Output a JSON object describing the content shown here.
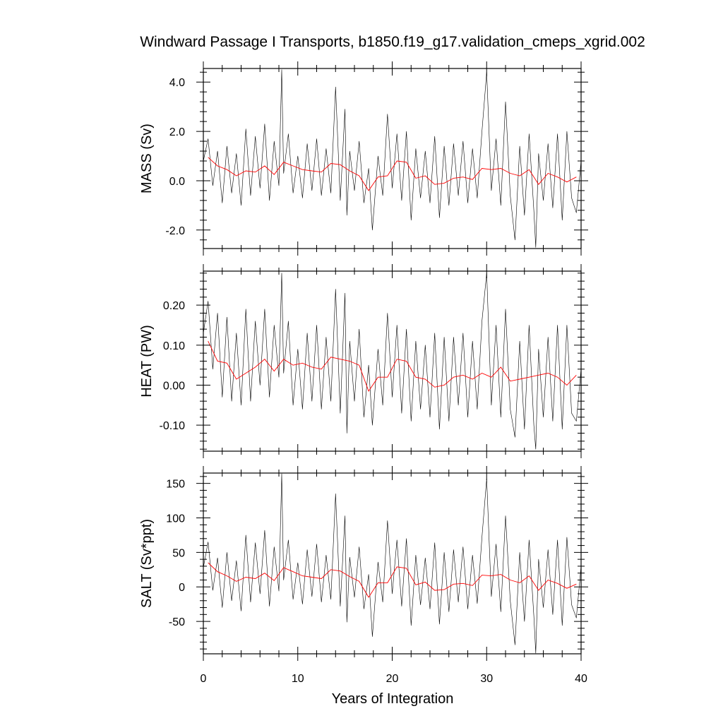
{
  "chart_data": {
    "type": "line",
    "title": "Windward Passage I Transports, b1850.f19_g17.validation_cmeps_xgrid.002",
    "xlabel": "Years of Integration",
    "xlim": [
      0,
      40
    ],
    "xticks": [
      0,
      10,
      20,
      30,
      40
    ],
    "xtick_labels": [
      "0",
      "10",
      "20",
      "30",
      "40"
    ],
    "panels": [
      {
        "id": "mass",
        "ylabel": "MASS (Sv)",
        "ylim": [
          -2.75,
          4.55
        ],
        "yticks": [
          -2.0,
          0.0,
          2.0,
          4.0
        ],
        "ytick_labels": [
          "-2.0",
          "0.0",
          "2.0",
          "4.0"
        ],
        "series": [
          {
            "kind": "monthly",
            "color": "#000000",
            "x": [
              0.0,
              0.5,
              1.0,
              1.5,
              2.0,
              2.5,
              3.0,
              3.5,
              4.0,
              4.5,
              5.0,
              5.5,
              6.0,
              6.5,
              7.0,
              7.5,
              8.0,
              8.3,
              8.5,
              9.0,
              9.5,
              10.0,
              10.5,
              11.0,
              11.5,
              12.0,
              12.5,
              13.0,
              13.5,
              14.0,
              14.5,
              15.0,
              15.2,
              15.5,
              16.0,
              16.5,
              17.0,
              17.5,
              17.9,
              18.5,
              19.0,
              19.5,
              20.0,
              20.5,
              21.0,
              21.5,
              22.0,
              22.5,
              23.0,
              23.5,
              24.0,
              24.5,
              25.0,
              25.5,
              26.0,
              26.5,
              27.0,
              27.5,
              28.0,
              28.5,
              29.0,
              29.5,
              30.0,
              30.5,
              31.0,
              31.5,
              32.0,
              32.5,
              33.0,
              33.5,
              34.0,
              34.5,
              35.0,
              35.2,
              35.5,
              36.0,
              36.5,
              37.0,
              37.5,
              38.0,
              38.5,
              39.0,
              39.5,
              40.0
            ],
            "y": [
              0.8,
              1.7,
              -0.2,
              1.2,
              -0.9,
              1.4,
              -0.5,
              1.1,
              -1.0,
              2.1,
              -0.6,
              1.8,
              -0.3,
              2.3,
              -0.8,
              1.6,
              -0.2,
              4.5,
              0.3,
              1.9,
              -0.5,
              1.0,
              -0.7,
              1.5,
              -0.4,
              1.7,
              -0.6,
              1.3,
              -0.5,
              3.8,
              -0.8,
              2.9,
              -1.4,
              1.2,
              -0.4,
              1.6,
              -0.9,
              0.5,
              -2.0,
              1.0,
              -0.6,
              2.7,
              -0.3,
              1.9,
              -0.8,
              2.0,
              -1.6,
              1.3,
              -0.7,
              1.2,
              -0.9,
              1.8,
              -1.5,
              1.4,
              -1.0,
              1.5,
              -0.6,
              1.6,
              -0.9,
              1.3,
              -0.7,
              2.0,
              4.4,
              -0.4,
              1.7,
              -1.0,
              3.2,
              -0.6,
              -2.4,
              1.4,
              -1.4,
              1.9,
              -1.2,
              -2.7,
              1.1,
              -0.8,
              1.5,
              -1.1,
              1.9,
              -1.6,
              2.0,
              -0.7,
              -1.3,
              0.8
            ]
          },
          {
            "kind": "annual",
            "color": "#ff0000",
            "x": [
              0.5,
              1.5,
              2.5,
              3.5,
              4.5,
              5.5,
              6.5,
              7.5,
              8.5,
              9.5,
              10.5,
              11.5,
              12.5,
              13.5,
              14.5,
              15.5,
              16.5,
              17.5,
              18.5,
              19.5,
              20.5,
              21.5,
              22.5,
              23.5,
              24.5,
              25.5,
              26.5,
              27.5,
              28.5,
              29.5,
              30.5,
              31.5,
              32.5,
              33.5,
              34.5,
              35.5,
              36.5,
              37.5,
              38.5,
              39.5
            ],
            "y": [
              0.95,
              0.6,
              0.45,
              0.2,
              0.4,
              0.35,
              0.6,
              0.25,
              0.75,
              0.6,
              0.45,
              0.4,
              0.35,
              0.7,
              0.65,
              0.4,
              0.2,
              -0.4,
              0.15,
              0.2,
              0.8,
              0.75,
              0.1,
              0.2,
              -0.15,
              -0.1,
              0.1,
              0.15,
              0.05,
              0.5,
              0.45,
              0.5,
              0.3,
              0.2,
              0.45,
              -0.15,
              0.3,
              0.15,
              -0.05,
              0.15
            ]
          }
        ]
      },
      {
        "id": "heat",
        "ylabel": "HEAT (PW)",
        "ylim": [
          -0.165,
          0.285
        ],
        "yticks": [
          -0.1,
          0.0,
          0.1,
          0.2
        ],
        "ytick_labels": [
          "-0.10",
          "0.00",
          "0.10",
          "0.20"
        ],
        "series": [
          {
            "kind": "monthly",
            "color": "#000000",
            "x": [
              0.0,
              0.5,
              1.0,
              1.5,
              2.0,
              2.5,
              3.0,
              3.5,
              4.0,
              4.5,
              5.0,
              5.5,
              6.0,
              6.5,
              7.0,
              7.5,
              8.0,
              8.3,
              8.5,
              9.0,
              9.5,
              10.0,
              10.5,
              11.0,
              11.5,
              12.0,
              12.5,
              13.0,
              13.5,
              14.0,
              14.5,
              15.0,
              15.2,
              15.5,
              16.0,
              16.5,
              17.0,
              17.5,
              17.9,
              18.5,
              19.0,
              19.5,
              20.0,
              20.5,
              21.0,
              21.5,
              22.0,
              22.5,
              23.0,
              23.5,
              24.0,
              24.5,
              25.0,
              25.5,
              26.0,
              26.5,
              27.0,
              27.5,
              28.0,
              28.5,
              29.0,
              29.5,
              30.0,
              30.5,
              31.0,
              31.5,
              32.0,
              32.5,
              33.0,
              33.5,
              34.0,
              34.5,
              35.0,
              35.2,
              35.5,
              36.0,
              36.5,
              37.0,
              37.5,
              38.0,
              38.5,
              39.0,
              39.5,
              40.0
            ],
            "y": [
              0.13,
              0.21,
              0.04,
              0.18,
              -0.03,
              0.17,
              -0.04,
              0.13,
              -0.05,
              0.19,
              -0.04,
              0.16,
              0.0,
              0.19,
              -0.03,
              0.15,
              0.02,
              0.28,
              0.03,
              0.16,
              -0.05,
              0.09,
              -0.06,
              0.13,
              -0.04,
              0.15,
              -0.06,
              0.12,
              -0.04,
              0.24,
              -0.07,
              0.23,
              -0.12,
              0.11,
              -0.04,
              0.14,
              -0.08,
              0.05,
              -0.1,
              0.09,
              -0.05,
              0.18,
              -0.03,
              0.15,
              -0.07,
              0.14,
              -0.09,
              0.11,
              -0.06,
              0.1,
              -0.08,
              0.13,
              -0.11,
              0.12,
              -0.09,
              0.12,
              -0.05,
              0.13,
              -0.08,
              0.11,
              -0.06,
              0.16,
              0.28,
              -0.05,
              0.15,
              -0.08,
              0.19,
              -0.06,
              -0.13,
              0.11,
              -0.11,
              0.15,
              -0.1,
              -0.16,
              0.09,
              -0.08,
              0.12,
              -0.09,
              0.15,
              -0.11,
              0.15,
              -0.07,
              -0.09,
              0.04
            ]
          },
          {
            "kind": "annual",
            "color": "#ff0000",
            "x": [
              0.5,
              1.5,
              2.5,
              3.5,
              4.5,
              5.5,
              6.5,
              7.5,
              8.5,
              9.5,
              10.5,
              11.5,
              12.5,
              13.5,
              14.5,
              15.5,
              16.5,
              17.5,
              18.5,
              19.5,
              20.5,
              21.5,
              22.5,
              23.5,
              24.5,
              25.5,
              26.5,
              27.5,
              28.5,
              29.5,
              30.5,
              31.5,
              32.5,
              33.5,
              34.5,
              35.5,
              36.5,
              37.5,
              38.5,
              39.5
            ],
            "y": [
              0.11,
              0.06,
              0.055,
              0.015,
              0.03,
              0.045,
              0.065,
              0.035,
              0.065,
              0.05,
              0.055,
              0.045,
              0.04,
              0.07,
              0.065,
              0.06,
              0.05,
              -0.015,
              0.02,
              0.02,
              0.065,
              0.06,
              0.02,
              0.015,
              -0.005,
              0.0,
              0.02,
              0.025,
              0.015,
              0.03,
              0.02,
              0.045,
              0.01,
              0.015,
              0.02,
              0.025,
              0.03,
              0.02,
              0.0,
              0.025
            ]
          }
        ]
      },
      {
        "id": "salt",
        "ylabel": "SALT (Sv*ppt)",
        "ylim": [
          -97,
          165
        ],
        "yticks": [
          -50,
          0,
          50,
          100,
          150
        ],
        "ytick_labels": [
          "-50",
          "0",
          "50",
          "100",
          "150"
        ],
        "series": [
          {
            "kind": "monthly",
            "color": "#000000",
            "x": [
              0.0,
              0.5,
              1.0,
              1.5,
              2.0,
              2.5,
              3.0,
              3.5,
              4.0,
              4.5,
              5.0,
              5.5,
              6.0,
              6.5,
              7.0,
              7.5,
              8.0,
              8.3,
              8.5,
              9.0,
              9.5,
              10.0,
              10.5,
              11.0,
              11.5,
              12.0,
              12.5,
              13.0,
              13.5,
              14.0,
              14.5,
              15.0,
              15.2,
              15.5,
              16.0,
              16.5,
              17.0,
              17.5,
              17.9,
              18.5,
              19.0,
              19.5,
              20.0,
              20.5,
              21.0,
              21.5,
              22.0,
              22.5,
              23.0,
              23.5,
              24.0,
              24.5,
              25.0,
              25.5,
              26.0,
              26.5,
              27.0,
              27.5,
              28.0,
              28.5,
              29.0,
              29.5,
              30.0,
              30.5,
              31.0,
              31.5,
              32.0,
              32.5,
              33.0,
              33.5,
              34.0,
              34.5,
              35.0,
              35.2,
              35.5,
              36.0,
              36.5,
              37.0,
              37.5,
              38.0,
              38.5,
              39.0,
              39.5,
              40.0
            ],
            "y": [
              28,
              65,
              -5,
              42,
              -30,
              50,
              -20,
              38,
              -35,
              75,
              -22,
              64,
              -10,
              82,
              -28,
              58,
              -6,
              164,
              10,
              68,
              -18,
              35,
              -25,
              54,
              -14,
              62,
              -22,
              46,
              -18,
              135,
              -28,
              103,
              -51,
              43,
              -15,
              58,
              -32,
              18,
              -72,
              36,
              -22,
              96,
              -10,
              68,
              -28,
              70,
              -56,
              46,
              -26,
              42,
              -32,
              64,
              -54,
              50,
              -36,
              54,
              -22,
              58,
              -32,
              46,
              -24,
              72,
              157,
              -14,
              62,
              -36,
              103,
              -20,
              -84,
              50,
              -50,
              68,
              -42,
              -96,
              40,
              -30,
              54,
              -40,
              68,
              -56,
              72,
              -26,
              -45,
              30
            ]
          },
          {
            "kind": "annual",
            "color": "#ff0000",
            "x": [
              0.5,
              1.5,
              2.5,
              3.5,
              4.5,
              5.5,
              6.5,
              7.5,
              8.5,
              9.5,
              10.5,
              11.5,
              12.5,
              13.5,
              14.5,
              15.5,
              16.5,
              17.5,
              18.5,
              19.5,
              20.5,
              21.5,
              22.5,
              23.5,
              24.5,
              25.5,
              26.5,
              27.5,
              28.5,
              29.5,
              30.5,
              31.5,
              32.5,
              33.5,
              34.5,
              35.5,
              36.5,
              37.5,
              38.5,
              39.5
            ],
            "y": [
              35,
              22,
              16,
              8,
              14,
              12,
              20,
              9,
              28,
              22,
              16,
              14,
              12,
              25,
              23,
              15,
              8,
              -15,
              6,
              6,
              29,
              27,
              3,
              7,
              -5,
              -4,
              4,
              5,
              2,
              17,
              16,
              18,
              10,
              6,
              16,
              -5,
              10,
              5,
              -2,
              4
            ]
          }
        ]
      }
    ]
  }
}
